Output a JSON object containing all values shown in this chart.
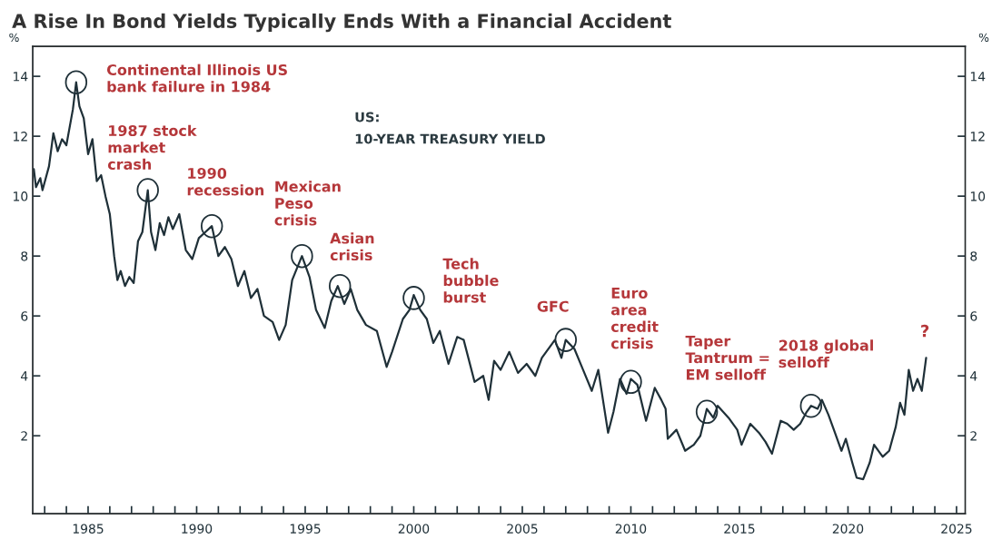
{
  "chart_data": {
    "type": "line",
    "title": "A Rise In Bond Yields Typically Ends With a Financial Accident",
    "ylabel": "%",
    "y2label": "%",
    "annotations": [
      "US:\n10-YEAR TREASURY YIELD",
      {
        "text": "Continental Illinois US\nbank failure in 1984",
        "x": 1984.45,
        "y": 13.8
      },
      {
        "text": "1987 stock\nmarket\ncrash",
        "x": 1987.75,
        "y": 10.2
      },
      {
        "text": "1990\nrecession",
        "x": 1990.7,
        "y": 9.0
      },
      {
        "text": "Mexican\nPeso\ncrisis",
        "x": 1994.85,
        "y": 8.0
      },
      {
        "text": "Asian\ncrisis",
        "x": 1996.6,
        "y": 7.0
      },
      {
        "text": "Tech\nbubble\nburst",
        "x": 2000.0,
        "y": 6.6
      },
      {
        "text": "GFC",
        "x": 2007.0,
        "y": 5.2
      },
      {
        "text": "Euro\narea\ncredit\ncrisis",
        "x": 2010.0,
        "y": 3.8
      },
      {
        "text": "Taper\nTantrum =\nEM selloff",
        "x": 2013.5,
        "y": 2.8
      },
      {
        "text": "2018 global\nselloff",
        "x": 2018.3,
        "y": 3.0
      },
      "?"
    ],
    "series": [
      {
        "color": "#1f3038",
        "x": [
          1982.5,
          1982.6,
          1982.8,
          1982.9,
          1983.2,
          1983.4,
          1983.6,
          1983.8,
          1984.0,
          1984.3,
          1984.45,
          1984.6,
          1984.8,
          1985.0,
          1985.2,
          1985.4,
          1985.6,
          1985.8,
          1986.0,
          1986.2,
          1986.35,
          1986.5,
          1986.7,
          1986.9,
          1987.1,
          1987.3,
          1987.5,
          1987.75,
          1987.9,
          1988.1,
          1988.3,
          1988.5,
          1988.7,
          1988.9,
          1989.2,
          1989.5,
          1989.8,
          1990.1,
          1990.4,
          1990.7,
          1991.0,
          1991.3,
          1991.6,
          1991.9,
          1992.2,
          1992.5,
          1992.8,
          1993.1,
          1993.5,
          1993.8,
          1994.1,
          1994.4,
          1994.85,
          1995.2,
          1995.5,
          1995.9,
          1996.2,
          1996.5,
          1996.8,
          1997.1,
          1997.4,
          1997.8,
          1998.3,
          1998.75,
          1999.0,
          1999.5,
          1999.8,
          2000.0,
          2000.3,
          2000.6,
          2000.9,
          2001.2,
          2001.6,
          2002.0,
          2002.3,
          2002.8,
          2003.2,
          2003.45,
          2003.7,
          2004.0,
          2004.4,
          2004.8,
          2005.2,
          2005.6,
          2005.9,
          2006.5,
          2006.8,
          2007.0,
          2007.4,
          2007.8,
          2008.2,
          2008.5,
          2008.95,
          2009.2,
          2009.5,
          2009.8,
          2010.0,
          2010.3,
          2010.7,
          2011.1,
          2011.4,
          2011.6,
          2011.7,
          2012.1,
          2012.5,
          2012.9,
          2013.2,
          2013.5,
          2013.8,
          2014.0,
          2014.5,
          2014.9,
          2015.1,
          2015.5,
          2015.9,
          2016.2,
          2016.5,
          2016.9,
          2017.2,
          2017.5,
          2017.8,
          2018.1,
          2018.3,
          2018.6,
          2018.8,
          2019.1,
          2019.4,
          2019.7,
          2019.9,
          2020.2,
          2020.4,
          2020.7,
          2021.0,
          2021.2,
          2021.6,
          2021.9,
          2022.2,
          2022.4,
          2022.6,
          2022.8,
          2023.0,
          2023.2,
          2023.4,
          2023.6
        ],
        "values": [
          10.9,
          10.3,
          10.6,
          10.2,
          11.0,
          12.1,
          11.5,
          11.9,
          11.7,
          12.9,
          13.8,
          13.0,
          12.6,
          11.4,
          11.9,
          10.5,
          10.7,
          10.0,
          9.4,
          8.0,
          7.2,
          7.5,
          7.0,
          7.3,
          7.1,
          8.5,
          8.8,
          10.2,
          8.8,
          8.2,
          9.1,
          8.7,
          9.3,
          8.9,
          9.4,
          8.2,
          7.9,
          8.6,
          8.8,
          9.0,
          8.0,
          8.3,
          7.9,
          7.0,
          7.5,
          6.6,
          6.9,
          6.0,
          5.8,
          5.2,
          5.7,
          7.2,
          8.0,
          7.3,
          6.2,
          5.6,
          6.5,
          7.0,
          6.4,
          6.9,
          6.2,
          5.7,
          5.5,
          4.3,
          4.8,
          5.9,
          6.2,
          6.7,
          6.2,
          5.9,
          5.1,
          5.5,
          4.4,
          5.3,
          5.2,
          3.8,
          4.0,
          3.2,
          4.5,
          4.2,
          4.8,
          4.1,
          4.4,
          4.0,
          4.6,
          5.2,
          4.6,
          5.2,
          4.9,
          4.2,
          3.5,
          4.2,
          2.1,
          2.8,
          3.9,
          3.4,
          3.9,
          3.7,
          2.5,
          3.6,
          3.2,
          2.9,
          1.9,
          2.2,
          1.5,
          1.7,
          2.0,
          2.9,
          2.6,
          3.0,
          2.6,
          2.2,
          1.7,
          2.4,
          2.1,
          1.8,
          1.4,
          2.5,
          2.4,
          2.2,
          2.4,
          2.8,
          3.0,
          2.9,
          3.2,
          2.7,
          2.1,
          1.5,
          1.9,
          1.1,
          0.6,
          0.55,
          1.1,
          1.7,
          1.3,
          1.5,
          2.3,
          3.1,
          2.7,
          4.2,
          3.5,
          3.9,
          3.5,
          4.6
        ]
      }
    ],
    "xlim": [
      1982.45,
      2025.4
    ],
    "xticks": [
      {
        "value": 1983,
        "label": null
      },
      {
        "value": 1984,
        "label": null
      },
      1985,
      {
        "value": 1986,
        "label": null
      },
      {
        "value": 1987,
        "label": null
      },
      {
        "value": 1988,
        "label": null
      },
      {
        "value": 1989,
        "label": null
      },
      1990,
      {
        "value": 1991,
        "label": null
      },
      {
        "value": 1992,
        "label": null
      },
      {
        "value": 1993,
        "label": null
      },
      {
        "value": 1994,
        "label": null
      },
      1995,
      {
        "value": 1996,
        "label": null
      },
      {
        "value": 1997,
        "label": null
      },
      {
        "value": 1998,
        "label": null
      },
      {
        "value": 1999,
        "label": null
      },
      2000,
      {
        "value": 2001,
        "label": null
      },
      {
        "value": 2002,
        "label": null
      },
      {
        "value": 2003,
        "label": null
      },
      {
        "value": 2004,
        "label": null
      },
      2005,
      {
        "value": 2006,
        "label": null
      },
      {
        "value": 2007,
        "label": null
      },
      {
        "value": 2008,
        "label": null
      },
      {
        "value": 2009,
        "label": null
      },
      2010,
      {
        "value": 2011,
        "label": null
      },
      {
        "value": 2012,
        "label": null
      },
      {
        "value": 2013,
        "label": null
      },
      {
        "value": 2014,
        "label": null
      },
      2015,
      {
        "value": 2016,
        "label": null
      },
      {
        "value": 2017,
        "label": null
      },
      {
        "value": 2018,
        "label": null
      },
      {
        "value": 2019,
        "label": null
      },
      2020,
      {
        "value": 2021,
        "label": null
      },
      {
        "value": 2022,
        "label": null
      },
      {
        "value": 2023,
        "label": null
      },
      {
        "value": 2024,
        "label": null
      },
      2025
    ],
    "ylim": [
      -0.6,
      15
    ],
    "yticks": [
      2,
      4,
      6,
      8,
      10,
      12,
      14
    ],
    "y2lim": [
      -0.6,
      15
    ],
    "y2ticks": [
      2,
      4,
      6,
      8,
      10,
      12,
      14
    ],
    "grid": false,
    "marker": "none",
    "line_style": "solid"
  }
}
